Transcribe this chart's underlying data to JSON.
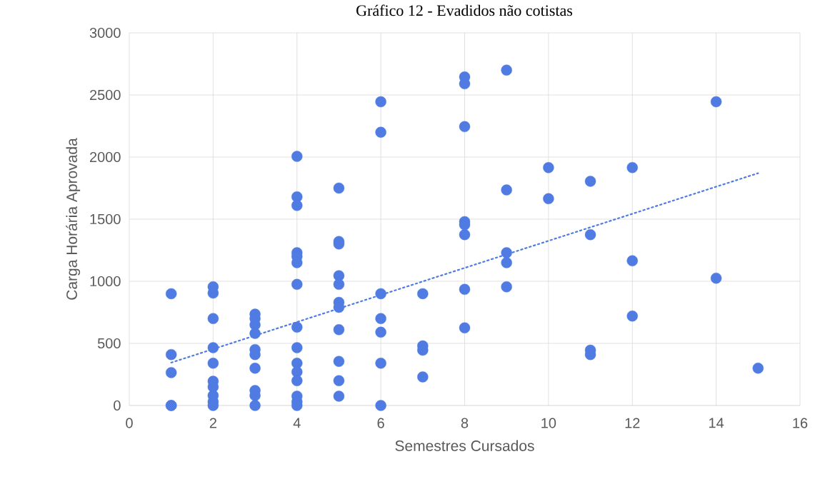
{
  "chart_data": {
    "type": "scatter",
    "title": "Gráfico 12 - Evadidos não cotistas",
    "xlabel": "Semestres Cursados",
    "ylabel": "Carga Horária Aprovada",
    "xlim": [
      0,
      16
    ],
    "xticks": [
      0,
      2,
      4,
      6,
      8,
      10,
      12,
      14,
      16
    ],
    "ylim": [
      0,
      3000
    ],
    "yticks": [
      0,
      500,
      1000,
      1500,
      2000,
      2500,
      3000
    ],
    "grid": true,
    "marker": "circle",
    "series": [
      {
        "color": "#4f7be3",
        "x": [
          1,
          1,
          1,
          1,
          1,
          2,
          2,
          2,
          2,
          2,
          2,
          2,
          2,
          2,
          2,
          3,
          3,
          3,
          3,
          3,
          3,
          3,
          3,
          3,
          3,
          4,
          4,
          4,
          4,
          4,
          4,
          4,
          4,
          4,
          4,
          4,
          4,
          4,
          4,
          4,
          5,
          5,
          5,
          5,
          5,
          5,
          5,
          5,
          5,
          5,
          5,
          6,
          6,
          6,
          6,
          6,
          6,
          6,
          7,
          7,
          7,
          7,
          8,
          8,
          8,
          8,
          8,
          8,
          8,
          8,
          9,
          9,
          9,
          9,
          9,
          10,
          10,
          11,
          11,
          11,
          11,
          12,
          12,
          12,
          14,
          14,
          15
        ],
        "values": [
          900,
          410,
          265,
          0,
          0,
          955,
          905,
          700,
          465,
          340,
          195,
          150,
          80,
          30,
          0,
          735,
          700,
          650,
          580,
          450,
          410,
          300,
          120,
          80,
          0,
          2005,
          1680,
          1610,
          1230,
          1200,
          1150,
          975,
          630,
          465,
          340,
          270,
          200,
          75,
          30,
          0,
          1750,
          1320,
          1300,
          1045,
          975,
          830,
          790,
          610,
          355,
          200,
          75,
          2445,
          2200,
          900,
          700,
          590,
          340,
          0,
          900,
          480,
          445,
          230,
          2645,
          2590,
          2245,
          1480,
          1455,
          1375,
          935,
          625,
          2700,
          1735,
          1230,
          1150,
          955,
          1915,
          1665,
          1805,
          1375,
          445,
          410,
          1915,
          1165,
          720,
          2445,
          1025,
          300
        ]
      },
      {
        "type": "line",
        "color": "#4f7be3",
        "line_style": "dotted",
        "marker": "none",
        "x": [
          1,
          15
        ],
        "values": [
          345,
          1870
        ]
      }
    ]
  }
}
